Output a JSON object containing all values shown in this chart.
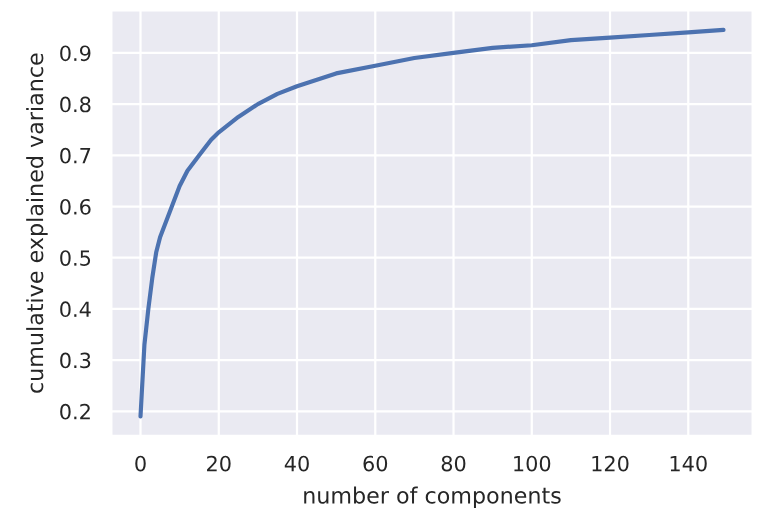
{
  "chart_data": {
    "type": "line",
    "xlabel": "number of components",
    "ylabel": "cumulative explained variance",
    "x": [
      0,
      1,
      2,
      3,
      4,
      5,
      6,
      8,
      10,
      12,
      15,
      18,
      20,
      25,
      30,
      35,
      40,
      50,
      60,
      70,
      80,
      90,
      100,
      110,
      120,
      130,
      140,
      149
    ],
    "series": [
      {
        "color": "#4c72b0",
        "values": [
          0.19,
          0.33,
          0.4,
          0.46,
          0.51,
          0.54,
          0.56,
          0.6,
          0.64,
          0.67,
          0.7,
          0.73,
          0.745,
          0.775,
          0.8,
          0.82,
          0.835,
          0.86,
          0.875,
          0.89,
          0.9,
          0.91,
          0.915,
          0.925,
          0.93,
          0.935,
          0.94,
          0.945
        ]
      }
    ],
    "xlim": [
      -7.45,
      156.45
    ],
    "ylim": [
      0.152,
      0.983
    ],
    "xticks": [
      0,
      20,
      40,
      60,
      80,
      100,
      120,
      140
    ],
    "yticks": [
      0.2,
      0.3,
      0.4,
      0.5,
      0.6,
      0.7,
      0.8,
      0.9
    ],
    "grid": true,
    "legend": false
  }
}
